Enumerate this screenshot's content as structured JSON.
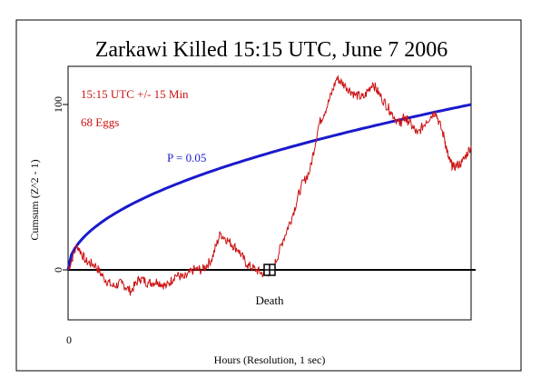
{
  "chart_data": {
    "type": "line",
    "title": "Zarkawi Killed 15:15 UTC, June 7 2006",
    "xlabel": "Hours (Resolution, 1 sec)",
    "ylabel": "Cumsum (Z^2 - 1)",
    "x_ticks": [
      "0"
    ],
    "y_ticks": [
      {
        "value": 0,
        "label": "0"
      },
      {
        "value": 100,
        "label": "100"
      }
    ],
    "xlim": [
      0,
      1800
    ],
    "ylim": [
      -30,
      122
    ],
    "grid": false,
    "annotations": {
      "window": "15:15 UTC +/- 15 Min",
      "eggs": "68 Eggs",
      "p_label": "P = 0.05",
      "event_label": "Death"
    },
    "event": {
      "x": 900,
      "y": 0
    },
    "series": [
      {
        "name": "P = 0.05",
        "color": "#1a1acc",
        "curve": "envelope",
        "end_value": 100
      },
      {
        "color": "#cc1111",
        "x": [
          0,
          40,
          80,
          120,
          160,
          200,
          240,
          280,
          320,
          360,
          400,
          440,
          480,
          520,
          560,
          600,
          640,
          680,
          720,
          760,
          800,
          840,
          880,
          920,
          960,
          1000,
          1040,
          1080,
          1120,
          1160,
          1200,
          1240,
          1280,
          1320,
          1360,
          1400,
          1440,
          1480,
          1500,
          1520,
          1560,
          1600,
          1640,
          1680,
          1700,
          1720,
          1760,
          1800
        ],
        "values": [
          0,
          15,
          5,
          3,
          -5,
          -10,
          -8,
          -13,
          -5,
          -8,
          -7,
          -10,
          -3,
          -5,
          0,
          0,
          6,
          22,
          17,
          12,
          3,
          0,
          -3,
          2,
          18,
          32,
          50,
          60,
          88,
          100,
          116,
          111,
          106,
          104,
          113,
          104,
          96,
          88,
          92,
          90,
          82,
          90,
          96,
          80,
          67,
          62,
          65,
          75
        ]
      }
    ]
  }
}
